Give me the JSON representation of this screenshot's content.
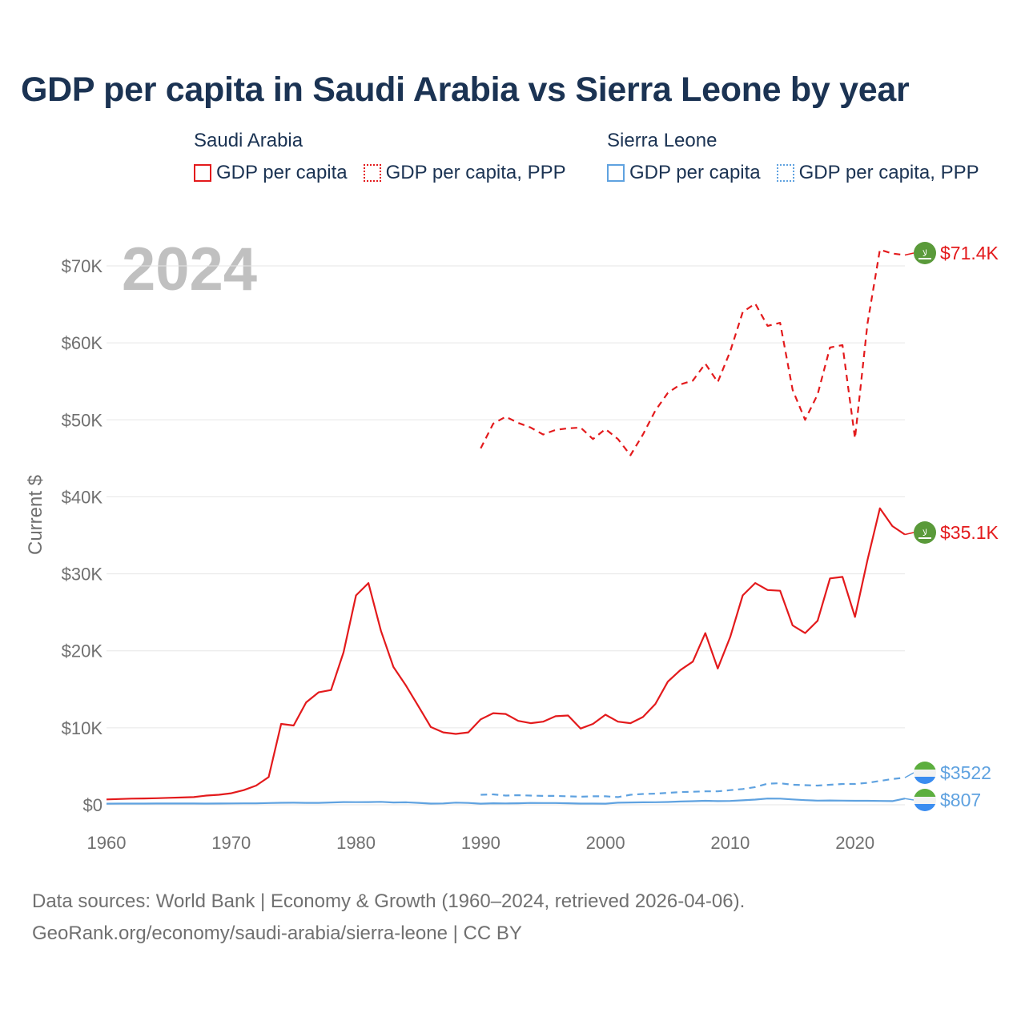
{
  "chart_data": {
    "type": "line",
    "title": "GDP per capita in Saudi Arabia vs Sierra Leone by year",
    "ylabel": "Current $",
    "xlabel": "",
    "year_watermark": "2024",
    "xlim": [
      1960,
      2024
    ],
    "ylim": [
      0,
      75000
    ],
    "x_ticks": [
      1960,
      1970,
      1980,
      1990,
      2000,
      2010,
      2020
    ],
    "x_tick_labels": [
      "1960",
      "1970",
      "1980",
      "1990",
      "2000",
      "2010",
      "2020"
    ],
    "y_ticks": [
      0,
      10000,
      20000,
      30000,
      40000,
      50000,
      60000,
      70000
    ],
    "y_tick_labels": [
      "$0",
      "$10K",
      "$20K",
      "$30K",
      "$40K",
      "$50K",
      "$60K",
      "$70K"
    ],
    "grid": true,
    "legend": {
      "groups": [
        {
          "country": "Saudi Arabia",
          "items": [
            "GDP per capita",
            "GDP per capita, PPP"
          ]
        },
        {
          "country": "Sierra Leone",
          "items": [
            "GDP per capita",
            "GDP per capita, PPP"
          ]
        }
      ]
    },
    "series": [
      {
        "name": "Saudi Arabia — GDP per capita",
        "color": "#e31a1c",
        "style": "solid",
        "end_label": "$35.1K",
        "x": [
          1960,
          1961,
          1962,
          1963,
          1964,
          1965,
          1966,
          1967,
          1968,
          1969,
          1970,
          1971,
          1972,
          1973,
          1974,
          1975,
          1976,
          1977,
          1978,
          1979,
          1980,
          1981,
          1982,
          1983,
          1984,
          1985,
          1986,
          1987,
          1988,
          1989,
          1990,
          1991,
          1992,
          1993,
          1994,
          1995,
          1996,
          1997,
          1998,
          1999,
          2000,
          2001,
          2002,
          2003,
          2004,
          2005,
          2006,
          2007,
          2008,
          2009,
          2010,
          2011,
          2012,
          2013,
          2014,
          2015,
          2016,
          2017,
          2018,
          2019,
          2020,
          2021,
          2022,
          2023,
          2024
        ],
        "values": [
          700,
          750,
          800,
          820,
          850,
          900,
          950,
          1000,
          1200,
          1300,
          1500,
          1900,
          2500,
          3600,
          10500,
          10300,
          13300,
          14600,
          14900,
          19800,
          27200,
          28800,
          22600,
          17900,
          15500,
          12800,
          10100,
          9400,
          9200,
          9400,
          11100,
          11900,
          11800,
          10900,
          10600,
          10800,
          11500,
          11600,
          9900,
          10500,
          11700,
          10800,
          10600,
          11400,
          13100,
          16000,
          17500,
          18600,
          22300,
          17700,
          21800,
          27200,
          28800,
          27900,
          27800,
          23300,
          22300,
          23900,
          29400,
          29600,
          24400,
          31800,
          38500,
          36200,
          35100
        ]
      },
      {
        "name": "Saudi Arabia — GDP per capita, PPP",
        "color": "#e31a1c",
        "style": "dashed",
        "end_label": "$71.4K",
        "x": [
          1990,
          1991,
          1992,
          1993,
          1994,
          1995,
          1996,
          1997,
          1998,
          1999,
          2000,
          2001,
          2002,
          2003,
          2004,
          2005,
          2006,
          2007,
          2008,
          2009,
          2010,
          2011,
          2012,
          2013,
          2014,
          2015,
          2016,
          2017,
          2018,
          2019,
          2020,
          2021,
          2022,
          2023,
          2024
        ],
        "values": [
          46300,
          49500,
          50400,
          49600,
          49000,
          48100,
          48700,
          48900,
          49000,
          47500,
          48800,
          47500,
          45400,
          48100,
          51200,
          53500,
          54600,
          55100,
          57300,
          54900,
          58900,
          64000,
          65100,
          62200,
          62600,
          53900,
          50000,
          53300,
          59400,
          59700,
          47600,
          62500,
          72100,
          71600,
          71400
        ]
      },
      {
        "name": "Sierra Leone — GDP per capita",
        "color": "#5fa2e0",
        "style": "solid",
        "end_label": "$807",
        "x": [
          1960,
          1961,
          1962,
          1963,
          1964,
          1965,
          1966,
          1967,
          1968,
          1969,
          1970,
          1971,
          1972,
          1973,
          1974,
          1975,
          1976,
          1977,
          1978,
          1979,
          1980,
          1981,
          1982,
          1983,
          1984,
          1985,
          1986,
          1987,
          1988,
          1989,
          1990,
          1991,
          1992,
          1993,
          1994,
          1995,
          1996,
          1997,
          1998,
          1999,
          2000,
          2001,
          2002,
          2003,
          2004,
          2005,
          2006,
          2007,
          2008,
          2009,
          2010,
          2011,
          2012,
          2013,
          2014,
          2015,
          2016,
          2017,
          2018,
          2019,
          2020,
          2021,
          2022,
          2023,
          2024
        ],
        "values": [
          150,
          155,
          160,
          160,
          165,
          165,
          170,
          170,
          160,
          170,
          180,
          185,
          190,
          230,
          260,
          270,
          250,
          250,
          300,
          350,
          340,
          350,
          380,
          300,
          320,
          250,
          160,
          180,
          280,
          240,
          150,
          200,
          180,
          200,
          240,
          230,
          230,
          200,
          160,
          160,
          150,
          270,
          300,
          320,
          330,
          360,
          430,
          470,
          520,
          480,
          500,
          580,
          680,
          810,
          800,
          700,
          600,
          540,
          560,
          540,
          520,
          520,
          500,
          480,
          807
        ]
      },
      {
        "name": "Sierra Leone — GDP per capita, PPP",
        "color": "#5fa2e0",
        "style": "dashed",
        "end_label": "$3522",
        "x": [
          1990,
          1991,
          1992,
          1993,
          1994,
          1995,
          1996,
          1997,
          1998,
          1999,
          2000,
          2001,
          2002,
          2003,
          2004,
          2005,
          2006,
          2007,
          2008,
          2009,
          2010,
          2011,
          2012,
          2013,
          2014,
          2015,
          2016,
          2017,
          2018,
          2019,
          2020,
          2021,
          2022,
          2023,
          2024
        ],
        "values": [
          1300,
          1350,
          1200,
          1250,
          1200,
          1150,
          1150,
          1100,
          1050,
          1100,
          1100,
          1000,
          1300,
          1400,
          1450,
          1550,
          1650,
          1700,
          1750,
          1750,
          1900,
          2050,
          2300,
          2750,
          2800,
          2600,
          2550,
          2500,
          2600,
          2700,
          2700,
          2850,
          3100,
          3350,
          3522
        ]
      }
    ],
    "end_markers": [
      {
        "series": 1,
        "flag": "saudi-arabia",
        "flag_text": "لا"
      },
      {
        "series": 0,
        "flag": "saudi-arabia",
        "flag_text": "لا"
      },
      {
        "series": 3,
        "flag": "sierra-leone"
      },
      {
        "series": 2,
        "flag": "sierra-leone"
      }
    ]
  },
  "footer": {
    "line1": "Data sources: World Bank | Economy & Growth (1960–2024, retrieved 2026-04-06).",
    "line2": "GeoRank.org/economy/saudi-arabia/sierra-leone | CC BY"
  }
}
